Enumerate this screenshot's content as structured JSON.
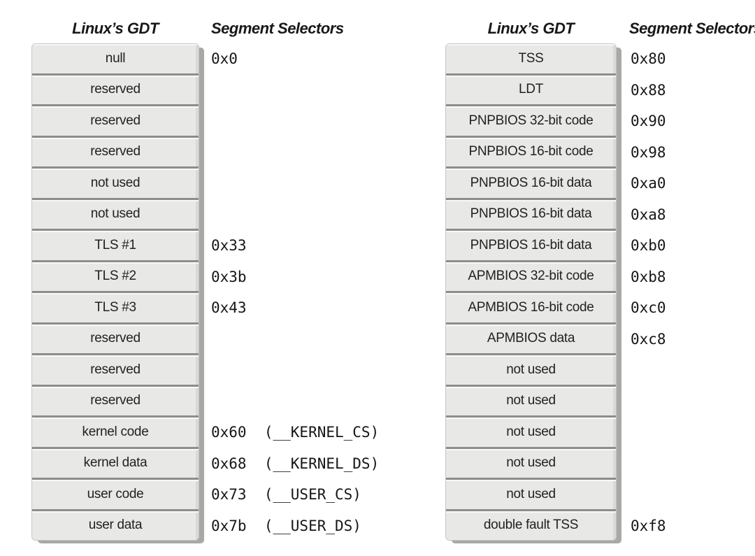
{
  "figure": {
    "colors": {
      "cell_fill": "#e8e8e6",
      "separator": "#8d8d8b",
      "drop_shadow": "#a8a8a6",
      "background": "#ffffff",
      "text": "#1c1c1c"
    },
    "panels": [
      {
        "gdt_title": "Linux’s GDT",
        "selectors_title": "Segment Selectors",
        "rows": [
          {
            "label": "null",
            "selector": "0x0"
          },
          {
            "label": "reserved",
            "selector": ""
          },
          {
            "label": "reserved",
            "selector": ""
          },
          {
            "label": "reserved",
            "selector": ""
          },
          {
            "label": "not used",
            "selector": ""
          },
          {
            "label": "not used",
            "selector": ""
          },
          {
            "label": "TLS #1",
            "selector": "0x33"
          },
          {
            "label": "TLS #2",
            "selector": "0x3b"
          },
          {
            "label": "TLS #3",
            "selector": "0x43"
          },
          {
            "label": "reserved",
            "selector": ""
          },
          {
            "label": "reserved",
            "selector": ""
          },
          {
            "label": "reserved",
            "selector": ""
          },
          {
            "label": "kernel code",
            "selector": "0x60  (__KERNEL_CS)"
          },
          {
            "label": "kernel data",
            "selector": "0x68  (__KERNEL_DS)"
          },
          {
            "label": "user code",
            "selector": "0x73  (__USER_CS)"
          },
          {
            "label": "user data",
            "selector": "0x7b  (__USER_DS)"
          }
        ]
      },
      {
        "gdt_title": "Linux’s GDT",
        "selectors_title": "Segment Selectors",
        "rows": [
          {
            "label": "TSS",
            "selector": "0x80"
          },
          {
            "label": "LDT",
            "selector": "0x88"
          },
          {
            "label": "PNPBIOS 32-bit code",
            "selector": "0x90"
          },
          {
            "label": "PNPBIOS 16-bit code",
            "selector": "0x98"
          },
          {
            "label": "PNPBIOS 16-bit data",
            "selector": "0xa0"
          },
          {
            "label": "PNPBIOS 16-bit data",
            "selector": "0xa8"
          },
          {
            "label": "PNPBIOS 16-bit data",
            "selector": "0xb0"
          },
          {
            "label": "APMBIOS 32-bit code",
            "selector": "0xb8"
          },
          {
            "label": "APMBIOS 16-bit code",
            "selector": "0xc0"
          },
          {
            "label": "APMBIOS data",
            "selector": "0xc8"
          },
          {
            "label": "not used",
            "selector": ""
          },
          {
            "label": "not used",
            "selector": ""
          },
          {
            "label": "not used",
            "selector": ""
          },
          {
            "label": "not used",
            "selector": ""
          },
          {
            "label": "not used",
            "selector": ""
          },
          {
            "label": "double fault TSS",
            "selector": "0xf8"
          }
        ]
      }
    ]
  }
}
